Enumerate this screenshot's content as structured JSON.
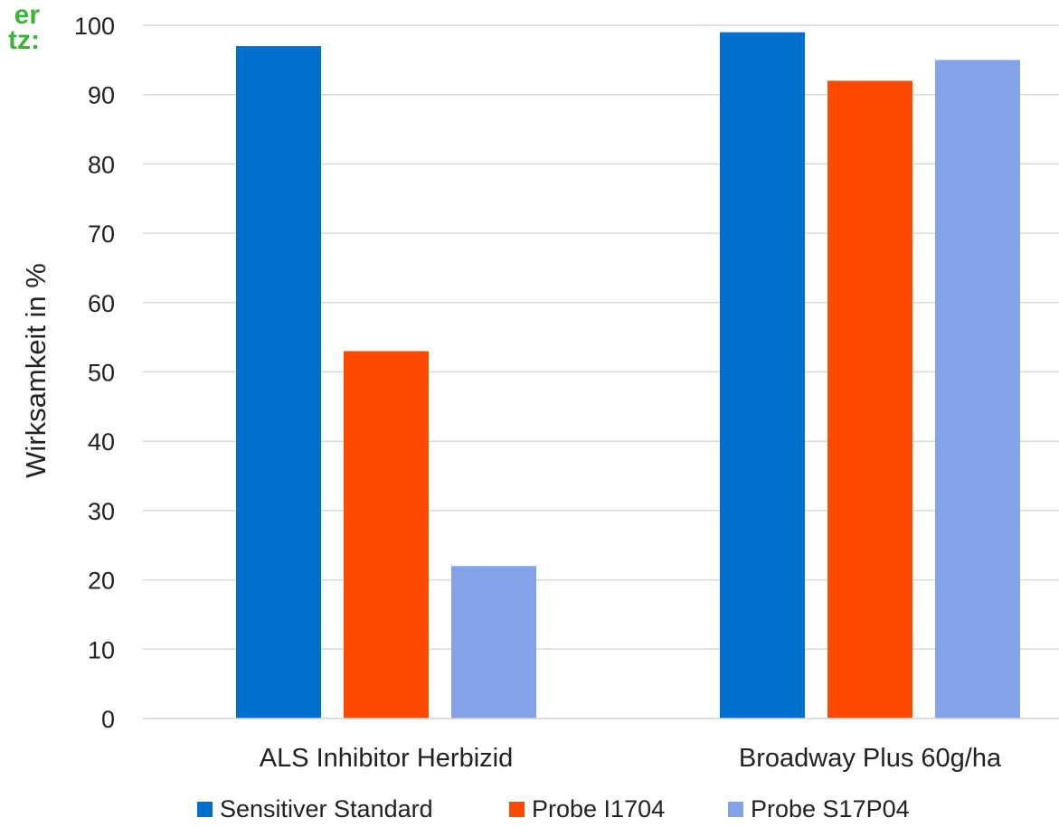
{
  "corner_text": {
    "line1": "er",
    "line2": "tz:"
  },
  "chart_data": {
    "type": "bar",
    "categories": [
      "ALS Inhibitor Herbizid",
      "Broadway Plus 60g/ha"
    ],
    "series": [
      {
        "name": "Sensitiver Standard",
        "values": [
          97,
          99
        ],
        "color": "#0070cf"
      },
      {
        "name": "Probe I1704",
        "values": [
          53,
          92
        ],
        "color": "#fe4a00"
      },
      {
        "name": "Probe S17P04",
        "values": [
          22,
          95
        ],
        "color": "#82a3e7"
      }
    ],
    "ylabel": "Wirksamkeit in %",
    "xlabel": "",
    "ylim": [
      0,
      100
    ],
    "yticks": [
      0,
      10,
      20,
      30,
      40,
      50,
      60,
      70,
      80,
      90,
      100
    ],
    "grid": true,
    "gridColor": "#d9d9d9",
    "legend": "bottom"
  }
}
